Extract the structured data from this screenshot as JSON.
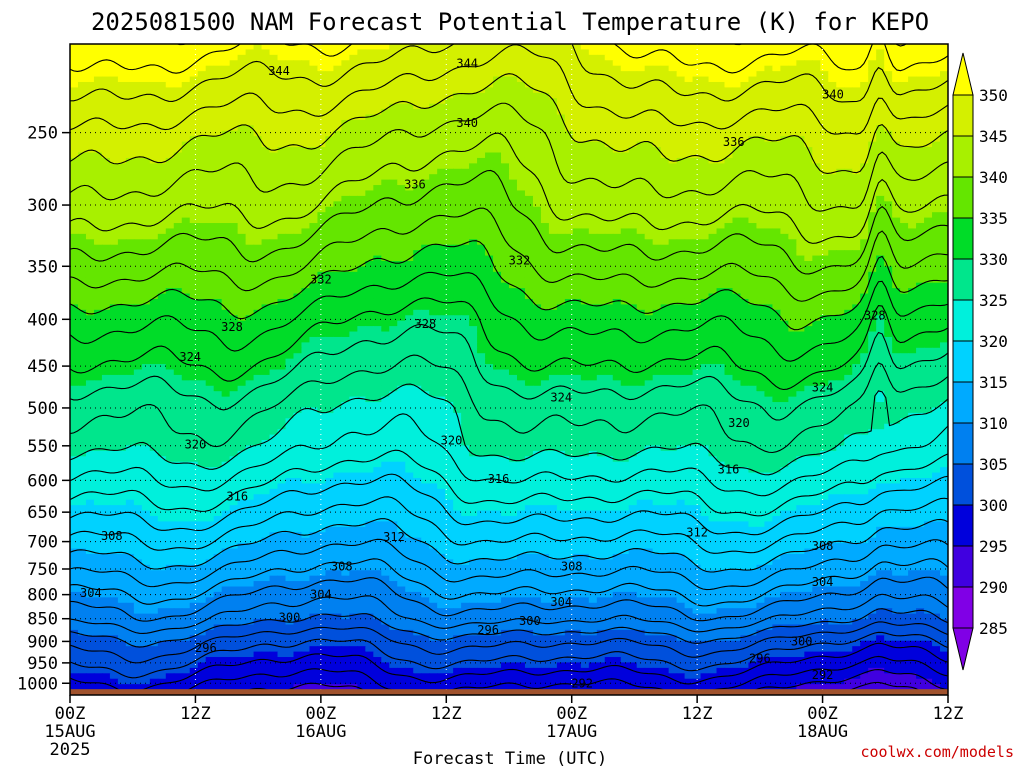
{
  "title": "2025081500 NAM Forecast Potential Temperature (K) for KEPO",
  "source": "coolwx.com/models",
  "colors": {
    "frame": "#000000",
    "ground": "#a0522d",
    "source": "#cc0000"
  },
  "chart_data": {
    "type": "contour",
    "title": "2025081500 NAM Forecast Potential Temperature (K) for KEPO",
    "xlabel": "Forecast Time (UTC)",
    "ylabel": "",
    "x_ticks": [
      {
        "hour": 0,
        "label": "00Z",
        "sub": "15AUG",
        "sub2": "2025"
      },
      {
        "hour": 12,
        "label": "12Z",
        "sub": "",
        "sub2": ""
      },
      {
        "hour": 24,
        "label": "00Z",
        "sub": "16AUG",
        "sub2": ""
      },
      {
        "hour": 36,
        "label": "12Z",
        "sub": "",
        "sub2": ""
      },
      {
        "hour": 48,
        "label": "00Z",
        "sub": "17AUG",
        "sub2": ""
      },
      {
        "hour": 60,
        "label": "12Z",
        "sub": "",
        "sub2": ""
      },
      {
        "hour": 72,
        "label": "00Z",
        "sub": "18AUG",
        "sub2": ""
      },
      {
        "hour": 84,
        "label": "12Z",
        "sub": "",
        "sub2": ""
      }
    ],
    "x_range_hours": [
      0,
      84
    ],
    "y_ticks_hpa": [
      250,
      300,
      350,
      400,
      450,
      500,
      550,
      600,
      650,
      700,
      750,
      800,
      850,
      900,
      950,
      1000
    ],
    "y_scale": "log-pressure",
    "y_range_hpa": [
      200,
      1030
    ],
    "ground_top_hpa": 1015,
    "grid": "dotted",
    "colorbar": {
      "labels": [
        350,
        345,
        340,
        335,
        330,
        325,
        320,
        315,
        310,
        305,
        300,
        295,
        290,
        285
      ],
      "colors": [
        "#ffff00",
        "#d4f000",
        "#a8f000",
        "#64e600",
        "#00dc28",
        "#00e68c",
        "#00f0dc",
        "#00d2ff",
        "#00aaff",
        "#0080f0",
        "#0050dc",
        "#0000dc",
        "#4000e0",
        "#8000e6"
      ],
      "extend": "both"
    },
    "levels": [
      286,
      288,
      290,
      292,
      294,
      296,
      298,
      300,
      302,
      304,
      306,
      308,
      310,
      312,
      314,
      316,
      318,
      320,
      322,
      324,
      326,
      328,
      330,
      332,
      334,
      336,
      338,
      340,
      342,
      344,
      346,
      348
    ],
    "profile": {
      "pressure_hpa": [
        200,
        250,
        300,
        350,
        400,
        450,
        500,
        550,
        600,
        650,
        700,
        750,
        800,
        850,
        900,
        950,
        1000
      ],
      "theta_K": [
        346,
        340,
        336,
        332,
        328,
        325,
        322,
        320,
        317,
        314,
        311,
        308,
        305,
        302,
        298,
        295,
        292
      ]
    },
    "contour_labels": [
      {
        "value": "344",
        "hour": 20.0,
        "hpa": 214
      },
      {
        "value": "344",
        "hour": 38.0,
        "hpa": 210
      },
      {
        "value": "340",
        "hour": 73.0,
        "hpa": 227
      },
      {
        "value": "340",
        "hour": 38.0,
        "hpa": 244
      },
      {
        "value": "336",
        "hour": 33.0,
        "hpa": 285
      },
      {
        "value": "336",
        "hour": 63.5,
        "hpa": 256
      },
      {
        "value": "332",
        "hour": 24.0,
        "hpa": 362
      },
      {
        "value": "332",
        "hour": 43.0,
        "hpa": 345
      },
      {
        "value": "328",
        "hour": 15.5,
        "hpa": 408
      },
      {
        "value": "328",
        "hour": 34.0,
        "hpa": 405
      },
      {
        "value": "328",
        "hour": 77.0,
        "hpa": 396
      },
      {
        "value": "324",
        "hour": 11.5,
        "hpa": 440
      },
      {
        "value": "324",
        "hour": 47.0,
        "hpa": 487
      },
      {
        "value": "324",
        "hour": 72.0,
        "hpa": 475
      },
      {
        "value": "320",
        "hour": 12.0,
        "hpa": 548
      },
      {
        "value": "320",
        "hour": 36.5,
        "hpa": 543
      },
      {
        "value": "320",
        "hour": 64.0,
        "hpa": 519
      },
      {
        "value": "316",
        "hour": 16.0,
        "hpa": 625
      },
      {
        "value": "316",
        "hour": 41.0,
        "hpa": 598
      },
      {
        "value": "316",
        "hour": 63.0,
        "hpa": 584
      },
      {
        "value": "312",
        "hour": 31.0,
        "hpa": 692
      },
      {
        "value": "312",
        "hour": 60.0,
        "hpa": 684
      },
      {
        "value": "308",
        "hour": 4.0,
        "hpa": 690
      },
      {
        "value": "308",
        "hour": 26.0,
        "hpa": 745
      },
      {
        "value": "308",
        "hour": 48.0,
        "hpa": 745
      },
      {
        "value": "308",
        "hour": 72.0,
        "hpa": 708
      },
      {
        "value": "304",
        "hour": 2.0,
        "hpa": 797
      },
      {
        "value": "304",
        "hour": 24.0,
        "hpa": 800
      },
      {
        "value": "304",
        "hour": 47.0,
        "hpa": 815
      },
      {
        "value": "304",
        "hour": 72.0,
        "hpa": 775
      },
      {
        "value": "300",
        "hour": 21.0,
        "hpa": 847
      },
      {
        "value": "300",
        "hour": 44.0,
        "hpa": 855
      },
      {
        "value": "300",
        "hour": 70.0,
        "hpa": 900
      },
      {
        "value": "296",
        "hour": 13.0,
        "hpa": 915
      },
      {
        "value": "296",
        "hour": 40.0,
        "hpa": 875
      },
      {
        "value": "296",
        "hour": 66.0,
        "hpa": 940
      },
      {
        "value": "292",
        "hour": 49.0,
        "hpa": 1000
      },
      {
        "value": "292",
        "hour": 72.0,
        "hpa": 980
      }
    ]
  }
}
